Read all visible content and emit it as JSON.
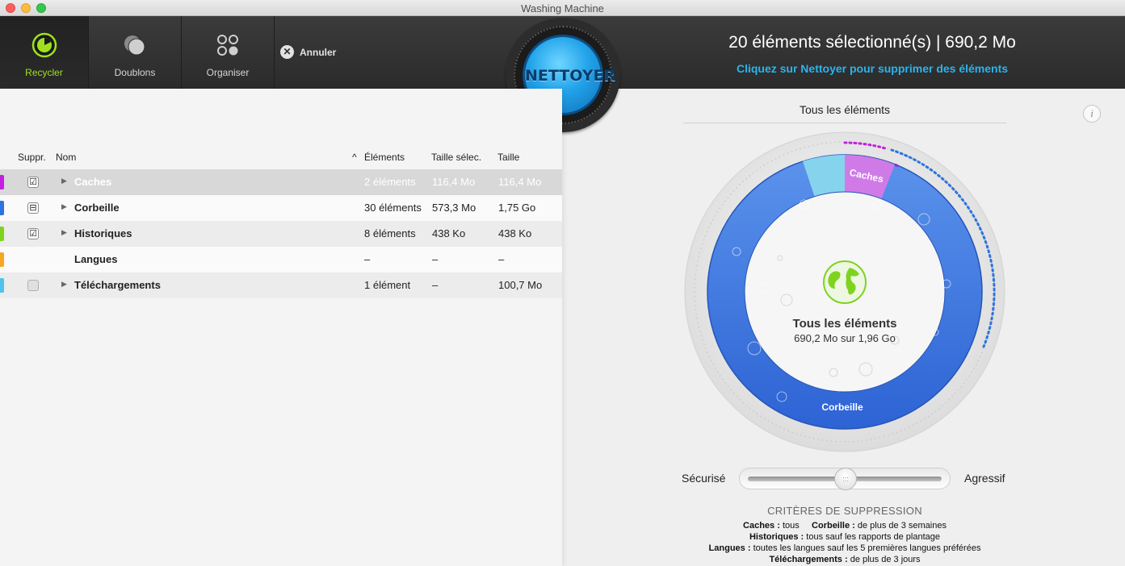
{
  "window": {
    "title": "Washing Machine"
  },
  "toolbar": {
    "tabs": [
      {
        "label": "Recycler",
        "active": true
      },
      {
        "label": "Doublons",
        "active": false
      },
      {
        "label": "Organiser",
        "active": false
      }
    ],
    "cancel_label": "Annuler",
    "clean_button_label": "NETTOYER",
    "headline": "20 éléments sélectionné(s) | 690,2 Mo",
    "subline": "Cliquez sur Nettoyer pour supprimer des éléments",
    "accent_color": "#2ab4ec",
    "active_tab_color": "#9ee21f"
  },
  "table": {
    "headers": {
      "suppr": "Suppr.",
      "nom": "Nom",
      "elements": "Éléments",
      "taille_sel": "Taille sélec.",
      "taille": "Taille"
    },
    "sort_indicator": "^",
    "rows": [
      {
        "color": "#c31fe0",
        "checkbox": "☑",
        "has_arrow": true,
        "name": "Caches",
        "elements": "2 éléments",
        "taille_sel": "116,4 Mo",
        "taille": "116,4 Mo"
      },
      {
        "color": "#2d74e0",
        "checkbox": "⊟",
        "has_arrow": true,
        "name": "Corbeille",
        "elements": "30 éléments",
        "taille_sel": "573,3 Mo",
        "taille": "1,75 Go"
      },
      {
        "color": "#7ed321",
        "checkbox": "☑",
        "has_arrow": true,
        "name": "Historiques",
        "elements": "8 éléments",
        "taille_sel": "438 Ko",
        "taille": "438 Ko"
      },
      {
        "color": "#f5a623",
        "checkbox": "",
        "has_arrow": false,
        "name": "Langues",
        "elements": "–",
        "taille_sel": "–",
        "taille": "–"
      },
      {
        "color": "#4fc3ee",
        "checkbox": "",
        "has_arrow": true,
        "name": "Téléchargements",
        "elements": "1 élément",
        "taille_sel": "–",
        "taille": "100,7 Mo"
      }
    ]
  },
  "right": {
    "title": "Tous les éléments",
    "info_icon": "i",
    "dial": {
      "center_title": "Tous les éléments",
      "center_sub": "690,2 Mo sur 1,96 Go",
      "label_caches": "Caches",
      "label_corbeille": "Corbeille",
      "colors": {
        "corbeille": "#3f7be0",
        "caches": "#d07ae8",
        "telechargements": "#86d3ee",
        "globe": "#7ed321"
      }
    },
    "slider": {
      "left_label": "Sécurisé",
      "right_label": "Agressif",
      "level": 0.5
    },
    "criteria": {
      "title": "CRITÈRES DE SUPPRESSION",
      "caches_label": "Caches :",
      "caches_value": "tous",
      "corbeille_label": "Corbeille :",
      "corbeille_value": "de plus de 3 semaines",
      "historiques_label": "Historiques :",
      "historiques_value": "tous sauf les rapports de plantage",
      "langues_label": "Langues :",
      "langues_value": "toutes les langues sauf les 5 premières langues préférées",
      "telechargements_label": "Téléchargements :",
      "telechargements_value": "de plus de 3 jours"
    }
  }
}
